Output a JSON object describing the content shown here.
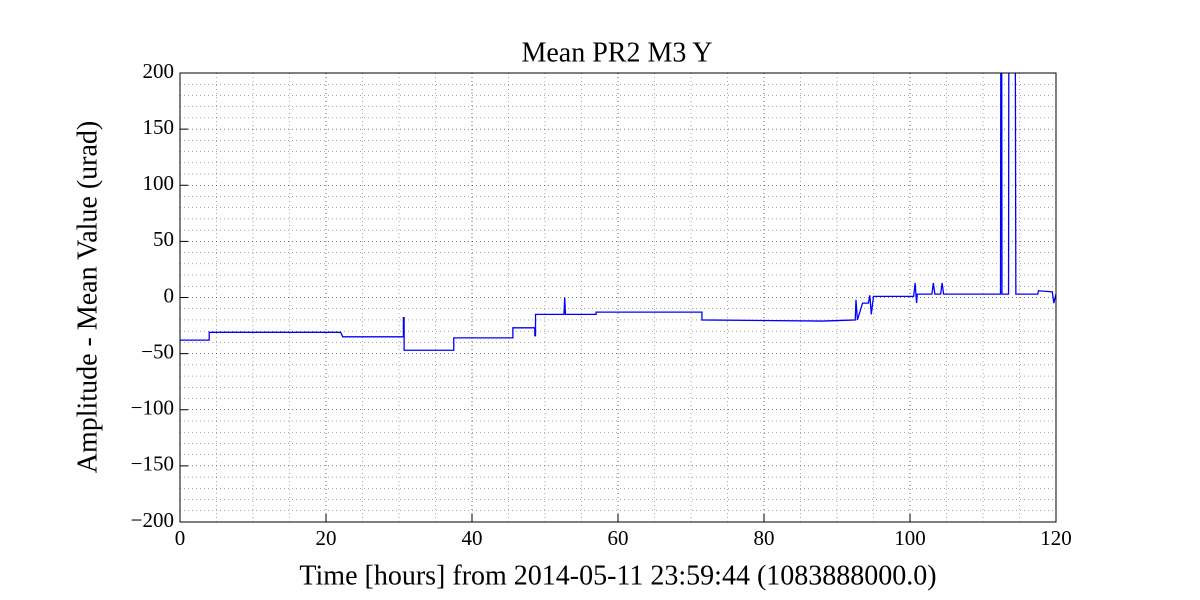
{
  "chart_data": {
    "type": "line",
    "title": "Mean PR2 M3 Y",
    "x_label": "Time [hours] from 2014-05-11 23:59:44 (1083888000.0)",
    "y_label": "Amplitude - Mean Value (urad)",
    "x": [
      0,
      4,
      4,
      22,
      22.3,
      30.6,
      30.6,
      30.7,
      30.7,
      37.5,
      37.5,
      45.6,
      45.6,
      48.6,
      48.6,
      48.7,
      48.7,
      52.6,
      52.7,
      52.8,
      57,
      57,
      71.5,
      71.5,
      88,
      92.5,
      92.6,
      92.8,
      93.5,
      94.3,
      94.5,
      94.7,
      95,
      100.5,
      100.7,
      100.9,
      101,
      103,
      103.2,
      103.4,
      104.2,
      104.4,
      104.6,
      112.4,
      112.5,
      112.6,
      113.5,
      113.6,
      114.3,
      114.5,
      117.5,
      117.6,
      119.5,
      119.7,
      120
    ],
    "series": [
      {
        "name": "Mean PR2 M3 Y",
        "color": "#0000ff",
        "values": [
          -38,
          -38,
          -31,
          -31,
          -35,
          -35,
          -18,
          -18,
          -47,
          -47,
          -36,
          -36,
          -27,
          -27,
          -34,
          -34,
          -15,
          -15,
          0,
          -15,
          -15,
          -13,
          -13,
          -20,
          -21,
          -20,
          -2,
          -20,
          -5,
          -5,
          2,
          -15,
          1,
          1,
          13,
          -5,
          3,
          3,
          13,
          3,
          3,
          13,
          3,
          3,
          600,
          3,
          3,
          600,
          600,
          3,
          3,
          6,
          5,
          -5,
          3
        ]
      }
    ],
    "xlim": [
      0,
      120
    ],
    "xticks": [
      0,
      20,
      40,
      60,
      80,
      100,
      120
    ],
    "ylim": [
      -200,
      200
    ],
    "yticks": [
      {
        "value": -200,
        "label": "−200"
      },
      {
        "value": -150,
        "label": "−150"
      },
      {
        "value": -100,
        "label": "−100"
      },
      {
        "value": -50,
        "label": "−50"
      },
      0,
      50,
      100,
      150,
      200
    ],
    "xminorticks": [
      5,
      10,
      15,
      25,
      30,
      35,
      45,
      50,
      55,
      65,
      70,
      75,
      85,
      90,
      95,
      105,
      110,
      115
    ],
    "yminorticks": [
      -190,
      -180,
      -170,
      -160,
      -140,
      -130,
      -120,
      -110,
      -90,
      -80,
      -70,
      -60,
      -40,
      -30,
      -20,
      -10,
      10,
      20,
      30,
      40,
      60,
      70,
      80,
      90,
      110,
      120,
      130,
      140,
      160,
      170,
      180,
      190
    ],
    "grid": true
  }
}
